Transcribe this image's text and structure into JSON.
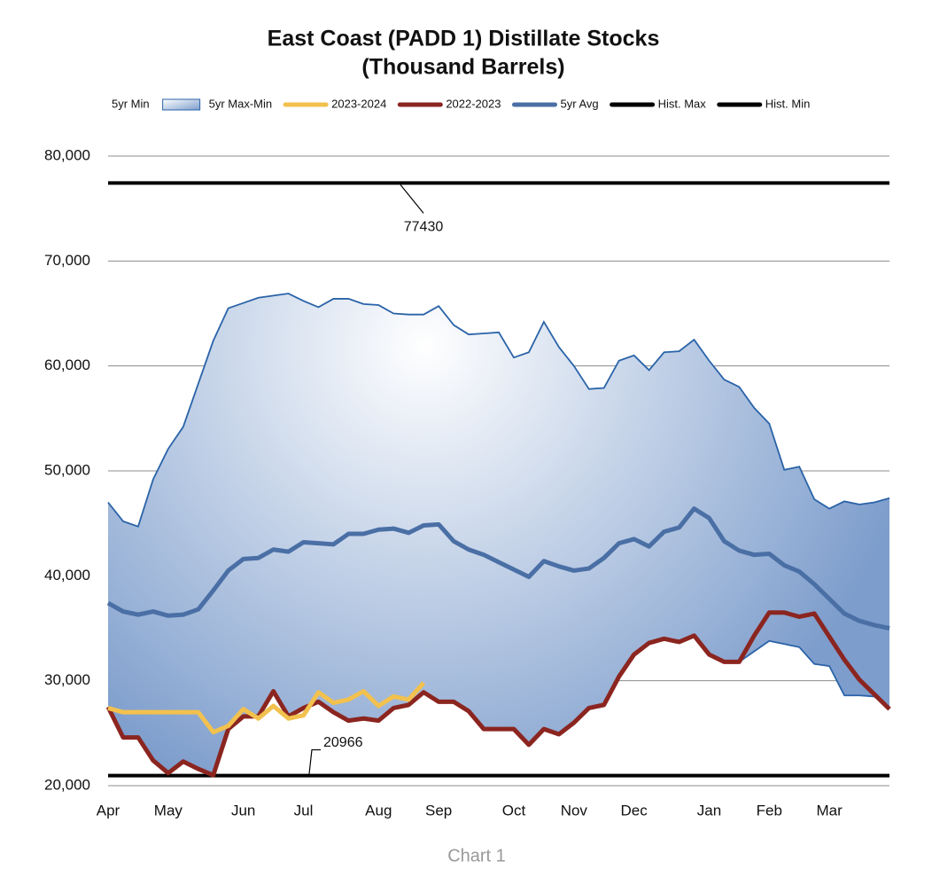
{
  "chart_data": {
    "type": "line",
    "title": [
      "East Coast (PADD 1) Distillate Stocks",
      "(Thousand Barrels)"
    ],
    "footer": "Chart 1",
    "categories": [
      "Apr",
      null,
      null,
      null,
      "May",
      null,
      null,
      null,
      null,
      "Jun",
      null,
      null,
      null,
      "Jul",
      null,
      null,
      null,
      null,
      "Aug",
      null,
      null,
      null,
      "Sep",
      null,
      null,
      null,
      null,
      "Oct",
      null,
      null,
      null,
      "Nov",
      null,
      null,
      null,
      "Dec",
      null,
      null,
      null,
      null,
      "Jan",
      null,
      null,
      null,
      "Feb",
      null,
      null,
      null,
      "Mar",
      null,
      null,
      null,
      null
    ],
    "ylim": [
      20000,
      80000
    ],
    "yticks": [
      {
        "value": 20000,
        "label": "20,000"
      },
      {
        "value": 30000,
        "label": "30,000"
      },
      {
        "value": 40000,
        "label": "40,000"
      },
      {
        "value": 50000,
        "label": "50,000"
      },
      {
        "value": 60000,
        "label": "60,000"
      },
      {
        "value": 70000,
        "label": "70,000"
      },
      {
        "value": 80000,
        "label": "80,000"
      }
    ],
    "grid": true,
    "legend": "top",
    "series": [
      {
        "name": "5yr Min",
        "type": "line",
        "color": "#2a63a8",
        "legend_marker": "none",
        "values": [
          27500,
          24600,
          24600,
          22400,
          21200,
          22300,
          21600,
          21000,
          25400,
          26600,
          26600,
          29000,
          26600,
          27400,
          28000,
          27000,
          26200,
          26400,
          26200,
          27400,
          27700,
          28900,
          28000,
          28000,
          27100,
          25400,
          25400,
          25400,
          23900,
          25400,
          24900,
          26000,
          27400,
          27700,
          30400,
          32500,
          33600,
          34000,
          33700,
          34300,
          32500,
          31800,
          31800,
          32800,
          33800,
          33500,
          33200,
          31600,
          31400,
          28600,
          28600,
          28500,
          27300
        ]
      },
      {
        "name": "5yr Max-Min",
        "type": "area",
        "color": "#7d9dcc",
        "values": [
          19500,
          20600,
          20100,
          26800,
          30900,
          31900,
          36700,
          41400,
          40100,
          39400,
          39900,
          37700,
          40300,
          38800,
          37600,
          39400,
          40200,
          39500,
          39600,
          37600,
          37200,
          36000,
          37700,
          35900,
          35900,
          37700,
          37800,
          35400,
          37400,
          38800,
          36900,
          34000,
          30400,
          30200,
          30100,
          28500,
          26000,
          27300,
          27700,
          28200,
          28000,
          26900,
          26200,
          23200,
          20700,
          16600,
          17200,
          15700,
          15000,
          18500,
          18200,
          18500,
          20100
        ]
      },
      {
        "name": "2023-2024",
        "type": "line",
        "color": "#f2c14e",
        "values": [
          27400,
          27000,
          27000,
          27000,
          27000,
          27000,
          27000,
          25100,
          25700,
          27300,
          26400,
          27600,
          26400,
          26700,
          28900,
          27900,
          28200,
          29000,
          27600,
          28500,
          28200,
          29800,
          null,
          null,
          null,
          null,
          null,
          null,
          null,
          null,
          null,
          null,
          null,
          null,
          null,
          null,
          null,
          null,
          null,
          null,
          null,
          null,
          null,
          null,
          null,
          null,
          null,
          null,
          null,
          null,
          null,
          null,
          null
        ]
      },
      {
        "name": "2022-2023",
        "type": "line",
        "color": "#8b2520",
        "values": [
          27500,
          24600,
          24600,
          22400,
          21200,
          22300,
          21600,
          21000,
          25400,
          26600,
          26600,
          29000,
          26600,
          27400,
          28000,
          27000,
          26200,
          26400,
          26200,
          27400,
          27700,
          28900,
          28000,
          28000,
          27100,
          25400,
          25400,
          25400,
          23900,
          25400,
          24900,
          26000,
          27400,
          27700,
          30400,
          32500,
          33600,
          34000,
          33700,
          34300,
          32500,
          31800,
          31800,
          34300,
          36500,
          36500,
          36100,
          36400,
          34200,
          32000,
          30100,
          28700,
          27300
        ]
      },
      {
        "name": "5yr Avg",
        "type": "line",
        "color": "#4a6fa5",
        "values": [
          37400,
          36600,
          36300,
          36600,
          36200,
          36300,
          36800,
          38600,
          40500,
          41600,
          41700,
          42500,
          42300,
          43200,
          43100,
          43000,
          44000,
          44000,
          44400,
          44500,
          44100,
          44800,
          44900,
          43300,
          42500,
          42000,
          41300,
          40600,
          39900,
          41400,
          40900,
          40500,
          40700,
          41700,
          43100,
          43500,
          42800,
          44200,
          44600,
          46400,
          45500,
          43300,
          42400,
          42000,
          42100,
          41000,
          40400,
          39200,
          37800,
          36400,
          35700,
          35300,
          35000
        ]
      },
      {
        "name": "Hist. Max",
        "type": "hline",
        "color": "#000000",
        "value": 77430
      },
      {
        "name": "Hist. Min",
        "type": "hline",
        "color": "#000000",
        "value": 20966
      }
    ]
  }
}
